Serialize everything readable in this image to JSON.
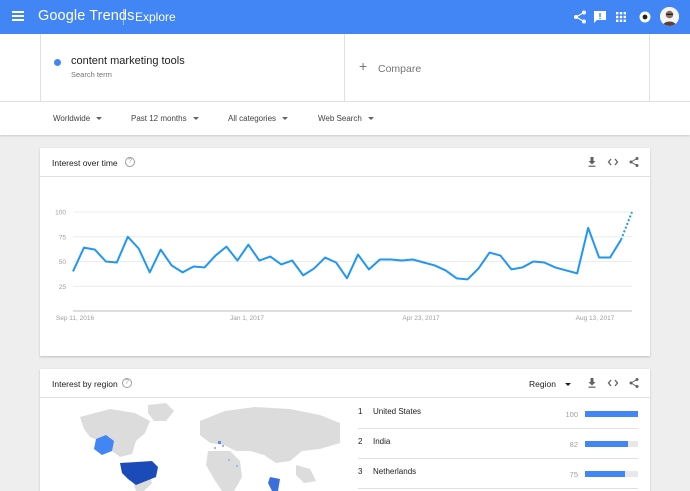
{
  "header": {
    "logo": "Google Trends",
    "section": "Explore",
    "icons": [
      "menu-icon",
      "share-icon",
      "feedback-icon",
      "apps-icon",
      "notifications-icon",
      "avatar"
    ],
    "color": "#4285f4"
  },
  "search": {
    "term": "content marketing tools",
    "term_type": "Search term",
    "term_color": "#4285f4",
    "compare_label": "Compare"
  },
  "filters": {
    "region": "Worldwide",
    "time": "Past 12 months",
    "category": "All categories",
    "property": "Web Search"
  },
  "interest_over_time": {
    "title": "Interest over time",
    "icons": [
      "help-icon",
      "download-icon",
      "embed-icon",
      "share-icon"
    ],
    "chart_data": {
      "type": "line",
      "y_ticks": [
        "100",
        "75",
        "50",
        "25"
      ],
      "ylim": [
        0,
        100
      ],
      "x_tick_labels": [
        "Sep 11, 2016",
        "Jan 1, 2017",
        "Apr 23, 2017",
        "Aug 13, 2017"
      ],
      "series": [
        {
          "color": "#2196f3",
          "values": [
            40,
            64,
            62,
            50,
            49,
            75,
            63,
            39,
            62,
            46,
            39,
            45,
            44,
            56,
            65,
            51,
            67,
            51,
            55,
            47,
            51,
            36,
            43,
            54,
            49,
            33,
            57,
            42,
            52,
            52,
            51,
            52,
            49,
            46,
            41,
            33,
            32,
            43,
            59,
            56,
            42,
            44,
            50,
            49,
            44,
            41,
            38,
            84,
            54,
            54,
            72
          ],
          "partial_values": [
            72,
            100
          ]
        }
      ],
      "grid": true
    }
  },
  "interest_by_region": {
    "title": "Interest by region",
    "region_select": "Region",
    "icons": [
      "help-icon",
      "download-icon",
      "embed-icon",
      "share-icon"
    ],
    "rows": [
      {
        "rank": "1",
        "name": "United States",
        "value": "100",
        "fraction": 1.0
      },
      {
        "rank": "2",
        "name": "India",
        "value": "82",
        "fraction": 0.82
      },
      {
        "rank": "3",
        "name": "Netherlands",
        "value": "75",
        "fraction": 0.75
      }
    ],
    "bar_color": "#4285f4"
  }
}
